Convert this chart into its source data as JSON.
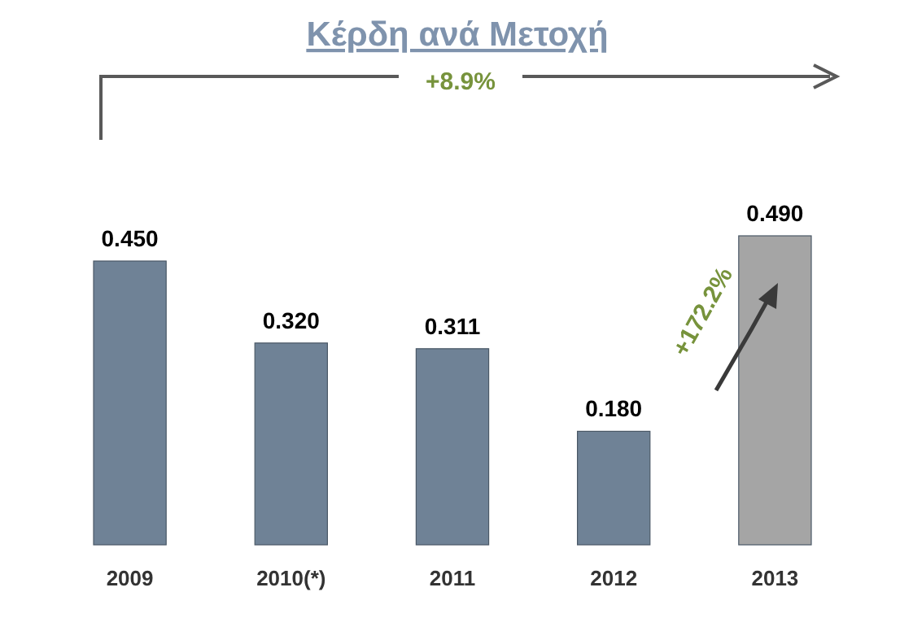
{
  "chart_data": {
    "type": "bar",
    "title": "Κέρδη ανά Μετοχή",
    "categories": [
      "2009",
      "2010(*)",
      "2011",
      "2012",
      "2013"
    ],
    "values": [
      0.45,
      0.32,
      0.311,
      0.18,
      0.49
    ],
    "colors": [
      "#6f8296",
      "#6f8296",
      "#6f8296",
      "#6f8296",
      "#a5a5a5"
    ],
    "value_labels": [
      "0.450",
      "0.320",
      "0.311",
      "0.180",
      "0.490"
    ],
    "annotations": [
      "+8.9%",
      "+172.2%"
    ]
  }
}
